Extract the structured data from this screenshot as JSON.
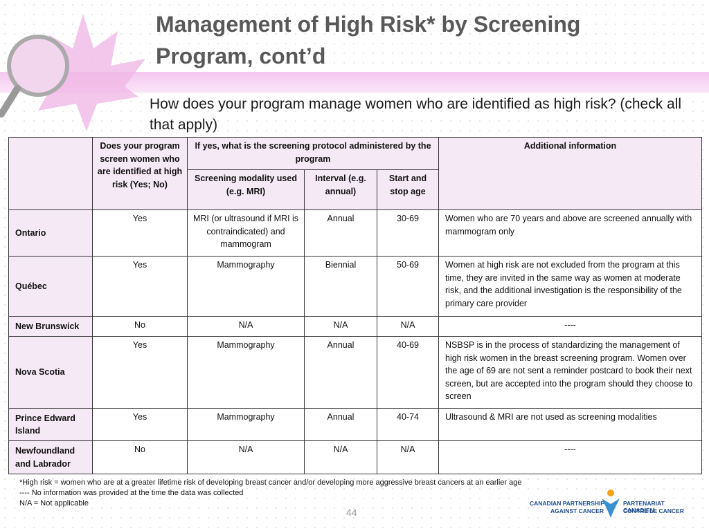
{
  "header": {
    "title": "Management of High Risk* by Screening Program, cont’d",
    "subtitle": "How does your program manage women who are identified as high risk? (check all that apply)"
  },
  "table": {
    "headers": {
      "screen": "Does your program screen women who are identified at high risk (Yes; No)",
      "protocol": "If yes, what is the screening protocol administered by the program",
      "modality": "Screening modality used (e.g. MRI)",
      "interval": "Interval (e.g. annual)",
      "age": "Start and stop age",
      "info": "Additional information"
    },
    "rows": [
      [
        "Ontario",
        "Yes",
        "MRI (or ultrasound if MRI is contraindicated) and mammogram",
        "Annual",
        "30-69",
        "Women who are 70 years and above are screened annually with mammogram only"
      ],
      [
        "Québec",
        "Yes",
        "Mammography",
        "Biennial",
        "50-69",
        "Women at high risk are not excluded from the program at this time, they are invited in the same way as women at moderate risk, and the additional investigation is the responsibility of the primary care provider"
      ],
      [
        "New Brunswick",
        "No",
        "N/A",
        "N/A",
        "N/A",
        "----"
      ],
      [
        "Nova Scotia",
        "Yes",
        "Mammography",
        "Annual",
        "40-69",
        "NSBSP is in the process of standardizing  the management of high risk women in the breast screening program. Women over the age of 69 are not sent a reminder postcard to book their next screen, but are accepted into the program should they choose to screen"
      ],
      [
        "Prince Edward Island",
        "Yes",
        "Mammography",
        "Annual",
        "40-74",
        "Ultrasound & MRI are not used as screening modalities"
      ],
      [
        "Newfoundland and Labrador",
        "No",
        "N/A",
        "N/A",
        "N/A",
        "----"
      ]
    ]
  },
  "footnotes": [
    "*High risk = women who are at a greater lifetime risk of developing breast cancer and/or developing more aggressive breast cancers at an earlier age",
    "---- No information was provided at the time the data was collected",
    "N/A = Not applicable"
  ],
  "page_number": "44",
  "logo": {
    "en_1": "CANADIAN PARTNERSHIP",
    "en_2": "AGAINST CANCER",
    "fr_1": "PARTENARIAT CANADIEN",
    "fr_2": "CONTRE LE CANCER"
  }
}
